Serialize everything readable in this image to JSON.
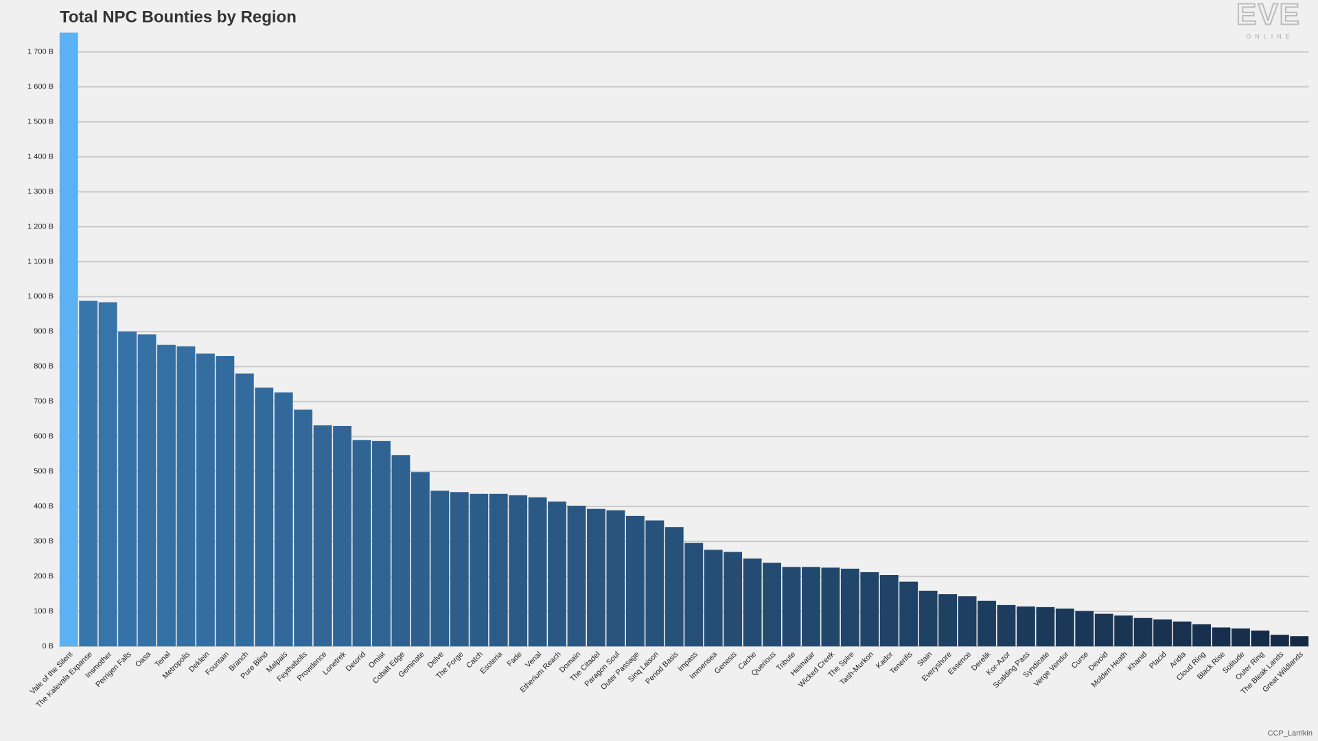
{
  "chart_data": {
    "type": "bar",
    "title": "Total NPC Bounties by Region",
    "logo": "EVE",
    "logo_sub": "ONLINE",
    "credit": "CCP_Larrikin",
    "categories": [
      "Vale of the Silent",
      "The Kalevala Expanse",
      "Insmother",
      "Perrigen Falls",
      "Oasa",
      "Tenal",
      "Metropolis",
      "Deklein",
      "Fountain",
      "Branch",
      "Pure Blind",
      "Malpais",
      "Feythabolis",
      "Providence",
      "Lonetrek",
      "Detorid",
      "Omist",
      "Cobalt Edge",
      "Geminate",
      "Delve",
      "The Forge",
      "Catch",
      "Esoteria",
      "Fade",
      "Venal",
      "Etherium Reach",
      "Domain",
      "The Citadel",
      "Paragon Soul",
      "Outer Passage",
      "Sinq Laison",
      "Period Basis",
      "Impass",
      "Immensea",
      "Genesis",
      "Cache",
      "Querious",
      "Tribute",
      "Heimatar",
      "Wicked Creek",
      "The Spire",
      "Tash-Murkon",
      "Kador",
      "Tenerifis",
      "Stain",
      "Everyshore",
      "Essence",
      "Derelik",
      "Kor-Azor",
      "Scalding Pass",
      "Syndicate",
      "Verge Vendor",
      "Curse",
      "Devoid",
      "Molden Heath",
      "Khanid",
      "Placid",
      "Aridia",
      "Cloud Ring",
      "Black Rise",
      "Solitude",
      "Outer Ring",
      "The Bleak Lands",
      "Great Wildlands"
    ],
    "values": [
      1755,
      988,
      984,
      900,
      892,
      862,
      858,
      837,
      830,
      780,
      740,
      726,
      677,
      632,
      630,
      590,
      587,
      547,
      498,
      445,
      441,
      436,
      436,
      432,
      426,
      414,
      402,
      393,
      389,
      373,
      360,
      341,
      296,
      276,
      270,
      251,
      239,
      227,
      227,
      225,
      222,
      212,
      204,
      185,
      159,
      149,
      143,
      130,
      118,
      114,
      112,
      108,
      101,
      93,
      88,
      81,
      77,
      71,
      63,
      54,
      51,
      45,
      33,
      29
    ],
    "color_gradient": [
      "#3876ac",
      "#142a45"
    ],
    "highlight_color": "#5ab2f4",
    "ylim": [
      0,
      1760
    ],
    "yticks": [
      {
        "value": 0,
        "label": "0 B"
      },
      {
        "value": 100,
        "label": "100 B"
      },
      {
        "value": 200,
        "label": "200 B"
      },
      {
        "value": 300,
        "label": "300 B"
      },
      {
        "value": 400,
        "label": "400 B"
      },
      {
        "value": 500,
        "label": "500 B"
      },
      {
        "value": 600,
        "label": "600 B"
      },
      {
        "value": 700,
        "label": "700 B"
      },
      {
        "value": 800,
        "label": "800 B"
      },
      {
        "value": 900,
        "label": "900 B"
      },
      {
        "value": 1000,
        "label": "1 000 B"
      },
      {
        "value": 1100,
        "label": "1 100 B"
      },
      {
        "value": 1200,
        "label": "1 200 B"
      },
      {
        "value": 1300,
        "label": "1 300 B"
      },
      {
        "value": 1400,
        "label": "1 400 B"
      },
      {
        "value": 1500,
        "label": "1 500 B"
      },
      {
        "value": 1600,
        "label": "1 600 B"
      },
      {
        "value": 1700,
        "label": "1 700 B"
      }
    ],
    "grid": true
  }
}
